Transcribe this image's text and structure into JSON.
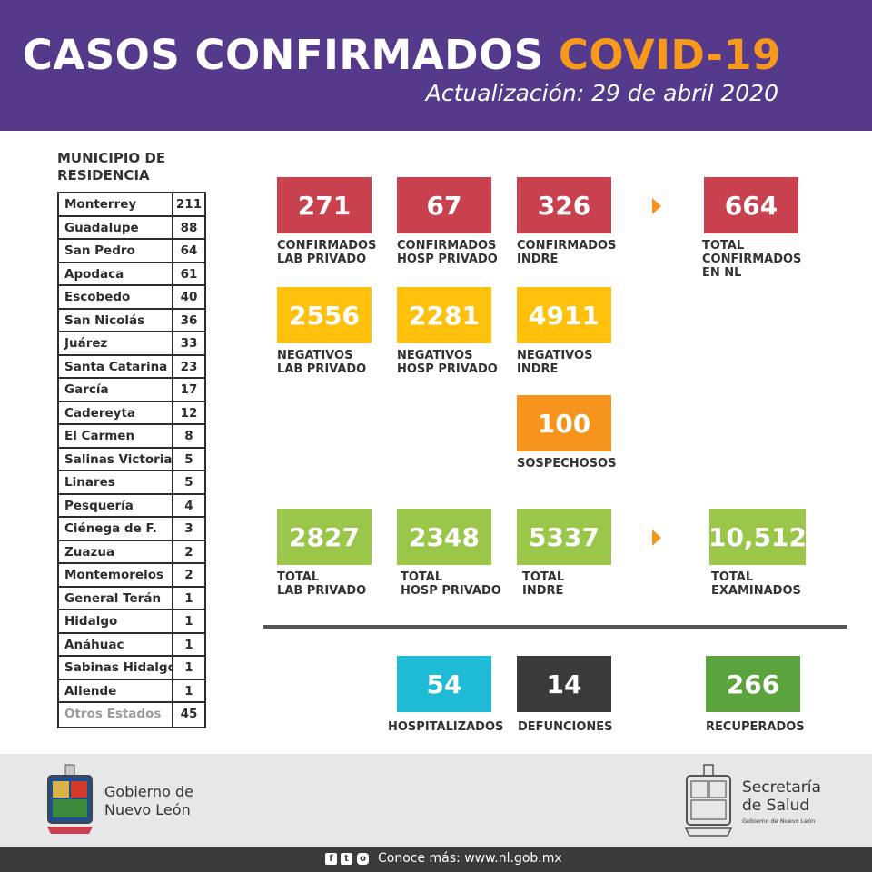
{
  "header": {
    "title_main": "CASOS CONFIRMADOS ",
    "title_accent": "COVID-19",
    "subtitle": "Actualización: 29 de abril 2020",
    "bg_color": "#553a8c",
    "accent_color": "#f79a1b"
  },
  "municipios": {
    "heading": "MUNICIPIO DE\nRESIDENCIA",
    "rows": [
      {
        "name": "Monterrey",
        "count": "211"
      },
      {
        "name": "Guadalupe",
        "count": "88"
      },
      {
        "name": "San Pedro",
        "count": "64"
      },
      {
        "name": "Apodaca",
        "count": "61"
      },
      {
        "name": "Escobedo",
        "count": "40"
      },
      {
        "name": "San Nicolás",
        "count": "36"
      },
      {
        "name": "Juárez",
        "count": "33"
      },
      {
        "name": "Santa Catarina",
        "count": "23"
      },
      {
        "name": "García",
        "count": "17"
      },
      {
        "name": "Cadereyta",
        "count": "12"
      },
      {
        "name": "El Carmen",
        "count": "8"
      },
      {
        "name": "Salinas Victoria",
        "count": "5"
      },
      {
        "name": "Linares",
        "count": "5"
      },
      {
        "name": "Pesquería",
        "count": "4"
      },
      {
        "name": "Ciénega de F.",
        "count": "3"
      },
      {
        "name": "Zuazua",
        "count": "2"
      },
      {
        "name": "Montemorelos",
        "count": "2"
      },
      {
        "name": "General Terán",
        "count": "1"
      },
      {
        "name": "Hidalgo",
        "count": "1"
      },
      {
        "name": "Anáhuac",
        "count": "1"
      },
      {
        "name": "Sabinas Hidalgo",
        "count": "1"
      },
      {
        "name": "Allende",
        "count": "1"
      },
      {
        "name": "Otros Estados",
        "count": "45"
      }
    ]
  },
  "tiles": {
    "conf_lab": {
      "value": "271",
      "label": "CONFIRMADOS\nLAB PRIVADO"
    },
    "conf_hosp": {
      "value": "67",
      "label": "CONFIRMADOS\nHOSP PRIVADO"
    },
    "conf_indre": {
      "value": "326",
      "label": "CONFIRMADOS\nINDRE"
    },
    "conf_total": {
      "value": "664",
      "label": "TOTAL\nCONFIRMADOS\nEN NL"
    },
    "neg_lab": {
      "value": "2556",
      "label": "NEGATIVOS\nLAB PRIVADO"
    },
    "neg_hosp": {
      "value": "2281",
      "label": "NEGATIVOS\nHOSP PRIVADO"
    },
    "neg_indre": {
      "value": "4911",
      "label": "NEGATIVOS\nINDRE"
    },
    "sospechosos": {
      "value": "100",
      "label": "SOSPECHOSOS"
    },
    "tot_lab": {
      "value": "2827",
      "label": "TOTAL\nLAB PRIVADO"
    },
    "tot_hosp": {
      "value": "2348",
      "label": "TOTAL\nHOSP PRIVADO"
    },
    "tot_indre": {
      "value": "5337",
      "label": "TOTAL\nINDRE"
    },
    "tot_exam": {
      "value": "10,512",
      "label": "TOTAL\nEXAMINADOS"
    },
    "hosp": {
      "value": "54",
      "label": "HOSPITALIZADOS"
    },
    "def": {
      "value": "14",
      "label": "DEFUNCIONES"
    },
    "rec": {
      "value": "266",
      "label": "RECUPERADOS"
    }
  },
  "colors": {
    "confirmados": "#c9404f",
    "negativos": "#fdc10e",
    "sospechosos": "#f7941d",
    "totales": "#9ac74a",
    "hospitalizados": "#1fbad6",
    "defunciones": "#3a3a3c",
    "recuperados": "#5aa33d"
  },
  "footer": {
    "gov": "Gobierno de\nNuevo León",
    "salud": "Secretaría\nde Salud",
    "salud_sub": "Gobierno de Nuevo León",
    "social_icons": [
      "facebook-icon",
      "twitter-icon",
      "instagram-icon"
    ],
    "contact": "Conoce más: www.nl.gob.mx"
  }
}
